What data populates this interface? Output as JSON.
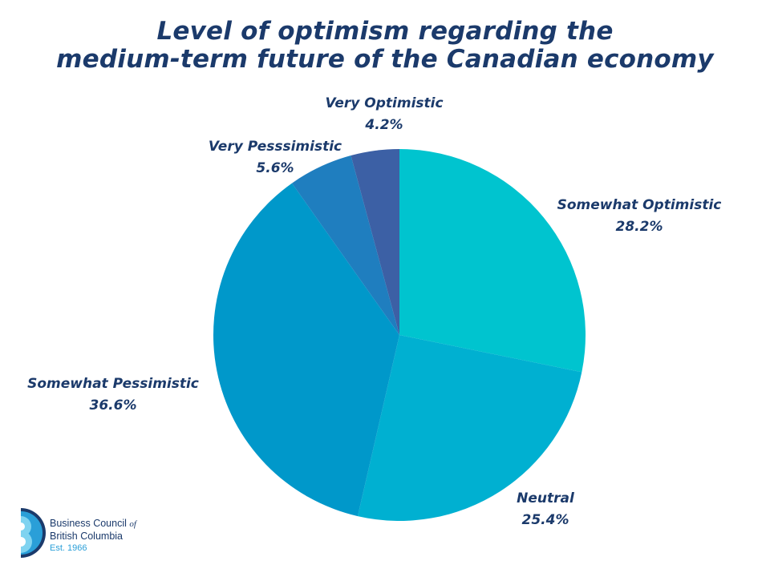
{
  "chart_data": {
    "type": "pie",
    "title": [
      "Level of optimism regarding the",
      "medium-term future of the Canadian economy"
    ],
    "slices": [
      {
        "label": "Somewhat Optimistic",
        "value": 28.2,
        "value_label": "28.2%",
        "color": "#00c4cf"
      },
      {
        "label": "Neutral",
        "value": 25.4,
        "value_label": "25.4%",
        "color": "#00b0d1"
      },
      {
        "label": "Somewhat Pessimistic",
        "value": 36.6,
        "value_label": "36.6%",
        "color": "#0098ca"
      },
      {
        "label": "Very Pesssimistic",
        "value": 5.6,
        "value_label": "5.6%",
        "color": "#1f7ebf"
      },
      {
        "label": "Very Optimistic",
        "value": 4.2,
        "value_label": "4.2%",
        "color": "#3c60a5"
      }
    ],
    "start_angle": "12 o'clock",
    "direction": "clockwise"
  },
  "branding": {
    "org_line1": "Business Council",
    "org_of": "of",
    "org_line2": "British Columbia",
    "est": "Est. 1966",
    "colors": [
      "#1b3a6b",
      "#2a9fd8",
      "#7fd3f0"
    ]
  }
}
